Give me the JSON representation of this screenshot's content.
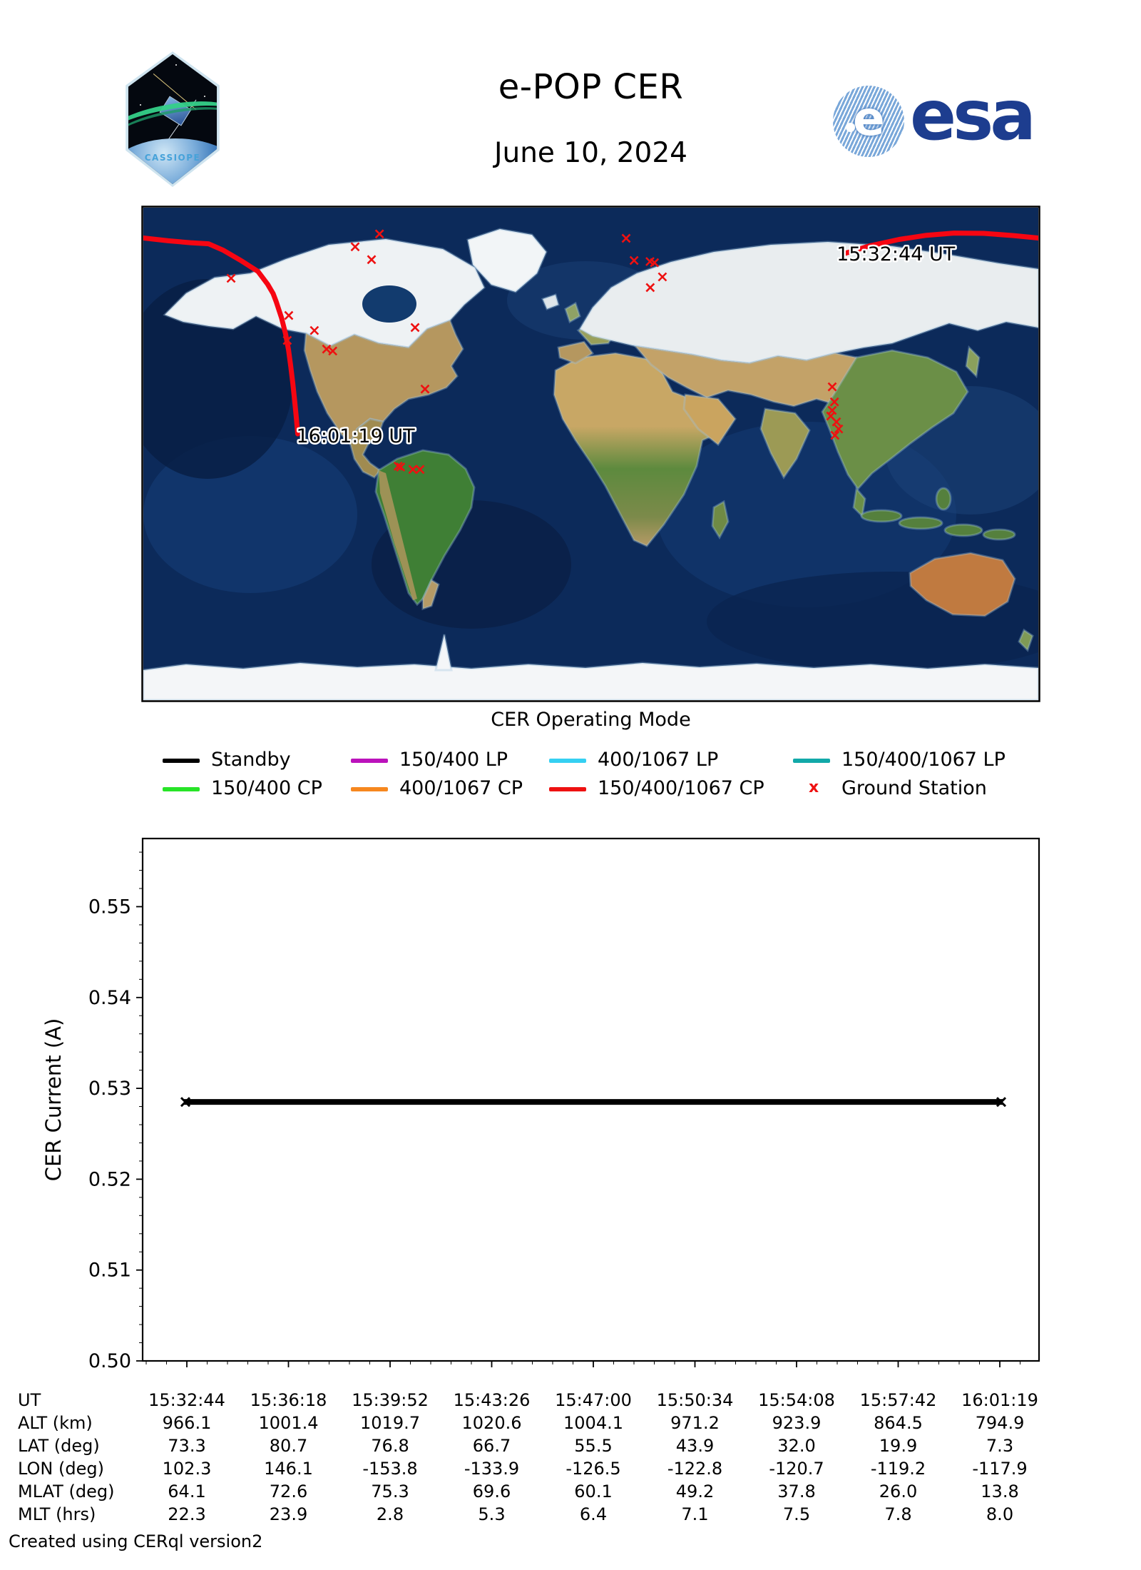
{
  "header": {
    "title": "e-POP CER",
    "date": "June 10, 2024",
    "mission_patch_text": "CASSIOPE",
    "esa_wordmark": "esa"
  },
  "map": {
    "start_time_label": "15:32:44 UT",
    "end_time_label": "16:01:19 UT",
    "track_color": "#f60612",
    "station_color": "#ee1111",
    "track_segments": [
      [
        [
          102.3,
          73.3
        ],
        [
          112,
          76.0
        ],
        [
          124,
          78.4
        ],
        [
          135,
          79.9
        ],
        [
          146.1,
          80.7
        ],
        [
          158,
          80.6
        ],
        [
          170,
          79.8
        ],
        [
          180,
          78.9
        ]
      ],
      [
        [
          -180,
          78.9
        ],
        [
          -170,
          77.9
        ],
        [
          -161,
          77.2
        ],
        [
          -153.8,
          76.8
        ],
        [
          -148,
          74.5
        ],
        [
          -141,
          70.8
        ],
        [
          -133.9,
          66.7
        ],
        [
          -130,
          62.0
        ],
        [
          -127.8,
          58.6
        ],
        [
          -126.5,
          55.5
        ],
        [
          -124.4,
          49.7
        ],
        [
          -122.8,
          43.9
        ],
        [
          -121.6,
          38.0
        ],
        [
          -120.7,
          32.0
        ],
        [
          -119.9,
          26.0
        ],
        [
          -119.2,
          19.9
        ],
        [
          -118.5,
          13.6
        ],
        [
          -117.9,
          7.3
        ]
      ]
    ],
    "ground_stations": [
      [
        -85.0,
        80.4
      ],
      [
        -94.8,
        75.7
      ],
      [
        -88.2,
        71.0
      ],
      [
        -144.7,
        64.2
      ],
      [
        -121.5,
        50.6
      ],
      [
        -111.2,
        45.1
      ],
      [
        -122.1,
        41.5
      ],
      [
        -106.3,
        38.3
      ],
      [
        -103.8,
        37.6
      ],
      [
        -70.7,
        46.2
      ],
      [
        -66.7,
        23.7
      ],
      [
        -77.5,
        -4.5
      ],
      [
        -76.5,
        -4.8
      ],
      [
        -71.6,
        -5.7
      ],
      [
        -68.7,
        -5.7
      ],
      [
        14.2,
        78.8
      ],
      [
        17.4,
        70.7
      ],
      [
        23.8,
        70.3
      ],
      [
        25.6,
        69.9
      ],
      [
        28.8,
        64.7
      ],
      [
        23.9,
        60.8
      ],
      [
        97.1,
        24.5
      ],
      [
        98.0,
        19.0
      ],
      [
        97.1,
        15.9
      ],
      [
        96.5,
        13.8
      ],
      [
        98.8,
        11.7
      ],
      [
        99.7,
        9.1
      ],
      [
        98.2,
        6.8
      ]
    ]
  },
  "legend": {
    "title": "CER Operating Mode",
    "entries": [
      {
        "label": "Standby",
        "color": "#000000",
        "type": "line"
      },
      {
        "label": "150/400 LP",
        "color": "#bb12bb",
        "type": "line"
      },
      {
        "label": "400/1067 LP",
        "color": "#35d0f2",
        "type": "line"
      },
      {
        "label": "150/400/1067 LP",
        "color": "#12a9a9",
        "type": "line"
      },
      {
        "label": "150/400 CP",
        "color": "#27e427",
        "type": "line"
      },
      {
        "label": "400/1067 CP",
        "color": "#f6871f",
        "type": "line"
      },
      {
        "label": "150/400/1067 CP",
        "color": "#ee1111",
        "type": "line"
      },
      {
        "label": "Ground Station",
        "color": "#ee1111",
        "type": "marker"
      }
    ]
  },
  "chart_data": {
    "type": "line",
    "title": "",
    "xlabel": "",
    "ylabel": "CER Current (A)",
    "ylim": [
      0.5,
      0.5575
    ],
    "ytick_labels": [
      "0.50",
      "0.51",
      "0.52",
      "0.53",
      "0.54",
      "0.55"
    ],
    "ytick_minor_step": 0.002,
    "x_ticklabels": [
      "15:32:44",
      "15:36:18",
      "15:39:52",
      "15:43:26",
      "15:47:00",
      "15:50:34",
      "15:54:08",
      "15:57:42",
      "16:01:19"
    ],
    "series": [
      {
        "name": "Standby",
        "color": "#000000",
        "marker": "x",
        "values": [
          0.5285,
          0.5285,
          0.5285,
          0.5285,
          0.5285,
          0.5285,
          0.5285,
          0.5285,
          0.5285
        ]
      }
    ],
    "grid": false,
    "legend_position": "none"
  },
  "table": {
    "rows": [
      {
        "label": "UT",
        "values": [
          "15:32:44",
          "15:36:18",
          "15:39:52",
          "15:43:26",
          "15:47:00",
          "15:50:34",
          "15:54:08",
          "15:57:42",
          "16:01:19"
        ]
      },
      {
        "label": "ALT (km)",
        "values": [
          "966.1",
          "1001.4",
          "1019.7",
          "1020.6",
          "1004.1",
          "971.2",
          "923.9",
          "864.5",
          "794.9"
        ]
      },
      {
        "label": "LAT (deg)",
        "values": [
          "73.3",
          "80.7",
          "76.8",
          "66.7",
          "55.5",
          "43.9",
          "32.0",
          "19.9",
          "7.3"
        ]
      },
      {
        "label": "LON (deg)",
        "values": [
          "102.3",
          "146.1",
          "-153.8",
          "-133.9",
          "-126.5",
          "-122.8",
          "-120.7",
          "-119.2",
          "-117.9"
        ]
      },
      {
        "label": "MLAT (deg)",
        "values": [
          "64.1",
          "72.6",
          "75.3",
          "69.6",
          "60.1",
          "49.2",
          "37.8",
          "26.0",
          "13.8"
        ]
      },
      {
        "label": "MLT (hrs)",
        "values": [
          "22.3",
          "23.9",
          "2.8",
          "5.3",
          "6.4",
          "7.1",
          "7.5",
          "7.8",
          "8.0"
        ]
      }
    ]
  },
  "footer": {
    "text": "Created using CERql version2"
  }
}
